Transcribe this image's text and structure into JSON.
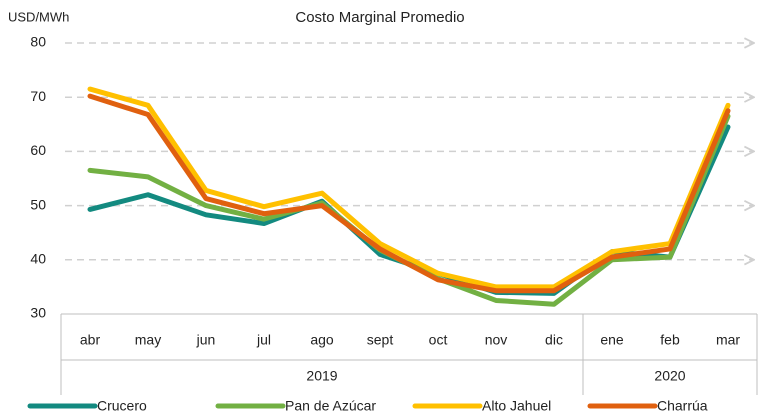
{
  "chart_data": {
    "type": "line",
    "title": "Costo Marginal Promedio",
    "y_label": "USD/MWh",
    "categories": [
      "abr",
      "may",
      "jun",
      "jul",
      "ago",
      "sept",
      "oct",
      "nov",
      "dic",
      "ene",
      "feb",
      "mar"
    ],
    "groups": [
      {
        "label": "2019",
        "size": 9
      },
      {
        "label": "2020",
        "size": 3
      }
    ],
    "series": [
      {
        "name": "Crucero",
        "color": "#138a80",
        "values": [
          49.3,
          52,
          48.3,
          46.7,
          50.8,
          41,
          37.5,
          34,
          33.8,
          41.5,
          40.5,
          64.5
        ]
      },
      {
        "name": "Pan de Azúcar",
        "color": "#72b043",
        "values": [
          56.5,
          55.3,
          50,
          47.5,
          50.5,
          41.8,
          36.5,
          32.5,
          31.8,
          40,
          40.5,
          66.5
        ]
      },
      {
        "name": "Alto Jahuel",
        "color": "#ffc000",
        "values": [
          71.5,
          68.5,
          52.8,
          49.8,
          52.3,
          43,
          37.5,
          35,
          35,
          41.5,
          43,
          68.5
        ]
      },
      {
        "name": "Charrúa",
        "color": "#e0600f",
        "values": [
          70.2,
          66.8,
          51.3,
          48.5,
          50,
          42,
          36.3,
          34.3,
          34.3,
          40.5,
          42,
          67.5
        ]
      }
    ],
    "ylim": [
      30,
      80
    ],
    "yticks": [
      30,
      40,
      50,
      60,
      70,
      80
    ],
    "grid": true,
    "legend": "bottom"
  }
}
